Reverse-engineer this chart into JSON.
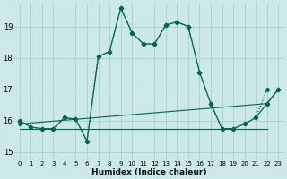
{
  "xlabel": "Humidex (Indice chaleur)",
  "background_color": "#cce8e8",
  "grid_color": "#aacfcf",
  "line_color": "#006655",
  "xlim": [
    -0.5,
    23.5
  ],
  "ylim": [
    14.75,
    19.75
  ],
  "yticks": [
    15,
    16,
    17,
    18,
    19
  ],
  "xticks": [
    0,
    1,
    2,
    3,
    4,
    5,
    6,
    7,
    8,
    9,
    10,
    11,
    12,
    13,
    14,
    15,
    16,
    17,
    18,
    19,
    20,
    21,
    22,
    23
  ],
  "series_dotted": {
    "x": [
      0,
      1,
      2,
      3,
      4,
      5,
      6,
      7,
      8,
      9,
      10,
      11,
      12,
      13,
      14,
      15,
      16,
      17,
      18,
      19,
      20,
      21,
      22
    ],
    "y": [
      16.0,
      15.8,
      15.75,
      15.75,
      16.1,
      16.05,
      15.35,
      18.05,
      18.2,
      19.6,
      18.8,
      18.45,
      18.45,
      19.05,
      19.15,
      19.0,
      17.55,
      16.55,
      15.75,
      15.75,
      15.9,
      16.1,
      17.0
    ]
  },
  "series_solid": {
    "x": [
      0,
      1,
      2,
      3,
      4,
      5,
      6,
      7,
      8,
      9,
      10,
      11,
      12,
      13,
      14,
      15,
      16,
      17,
      18,
      19,
      20,
      21,
      22,
      23
    ],
    "y": [
      16.0,
      15.8,
      15.75,
      15.75,
      16.1,
      16.05,
      15.35,
      18.05,
      18.2,
      19.6,
      18.8,
      18.45,
      18.45,
      19.05,
      19.15,
      19.0,
      17.55,
      16.55,
      15.75,
      15.75,
      15.9,
      16.1,
      16.55,
      17.0
    ]
  },
  "series_flat": {
    "x": [
      0,
      22
    ],
    "y": [
      15.75,
      15.75
    ]
  },
  "series_rising": {
    "x": [
      0,
      22,
      23
    ],
    "y": [
      15.9,
      16.55,
      17.0
    ]
  }
}
